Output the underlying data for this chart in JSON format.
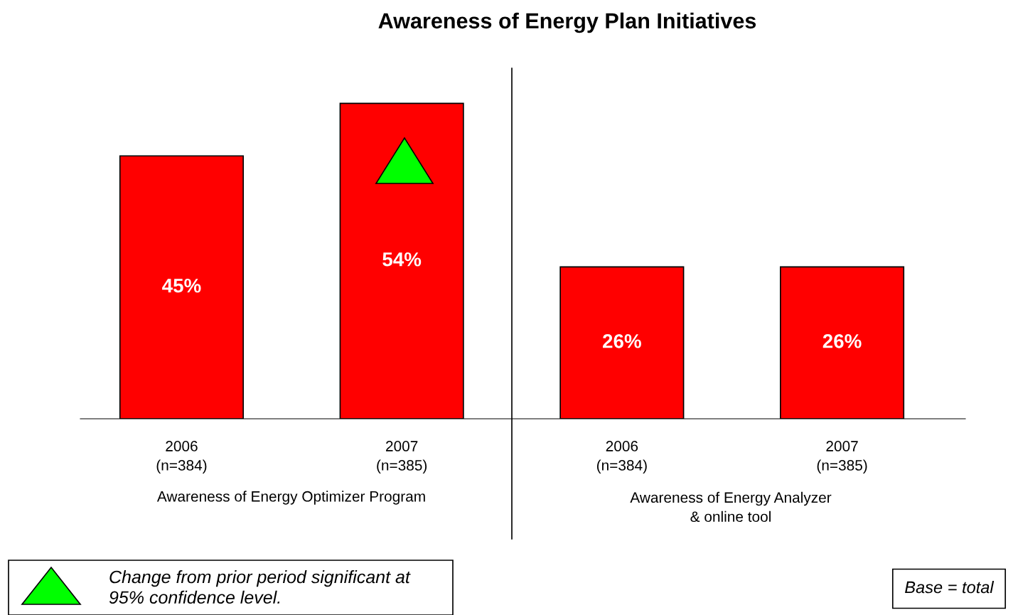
{
  "chart_data": {
    "type": "bar",
    "title": "Awareness of Energy Plan Initiatives",
    "categories": [
      "2006\n(n=384)",
      "2007\n(n=385)",
      "2006\n(n=384)",
      "2007\n(n=385)"
    ],
    "values": [
      45,
      54,
      26,
      26
    ],
    "value_labels": [
      "45%",
      "54%",
      "26%",
      "26%"
    ],
    "color": "#ff0000",
    "annotations": [
      "Awareness of Energy Optimizer Program",
      "Awareness of Energy Analyzer\n& online tool",
      "Change from prior period significant at\n95% confidence level.",
      "Base = total"
    ],
    "ref_lines": [
      {
        "axis": "x",
        "color": "#000000",
        "line_style": "solid"
      }
    ],
    "grid": false,
    "legend": false
  }
}
